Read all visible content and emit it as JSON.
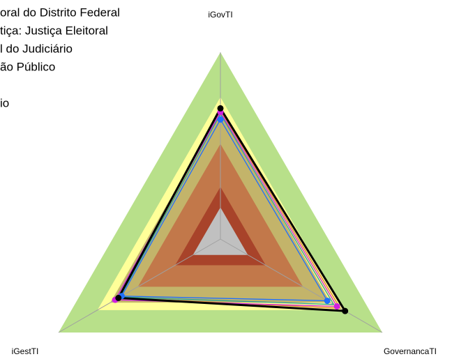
{
  "chart_data": {
    "type": "radar",
    "categories": [
      "iGovTI",
      "GovernancaTI",
      "iGestTI"
    ],
    "rlim": [
      0,
      1
    ],
    "bands": [
      {
        "color": "#b8e08a",
        "value": 1.0
      },
      {
        "color": "#ffff99",
        "value": 0.76
      },
      {
        "color": "#c3b46a",
        "value": 0.68
      },
      {
        "color": "#c2784a",
        "value": 0.51
      },
      {
        "color": "#a8432a",
        "value": 0.28
      },
      {
        "color": "#c0c0c0",
        "value": 0.17
      }
    ],
    "series": [
      {
        "name": "oral do Distrito Federal",
        "color": "#e07b30",
        "values": [
          0.69,
          0.74,
          0.63
        ],
        "markers": false
      },
      {
        "name": "tiça: Justiça Eleitoral",
        "color": "#2aa198",
        "values": [
          0.67,
          0.7,
          0.62
        ],
        "markers": false
      },
      {
        "name": "l do Judiciário",
        "color": "#1e6fff",
        "values": [
          0.64,
          0.66,
          0.61
        ],
        "markers": true
      },
      {
        "name": "ão Público",
        "color": "#d020e0",
        "values": [
          0.68,
          0.72,
          0.65
        ],
        "markers": true
      },
      {
        "name": "io",
        "color": "#000000",
        "values": [
          0.7,
          0.77,
          0.63
        ],
        "markers": true
      }
    ]
  }
}
